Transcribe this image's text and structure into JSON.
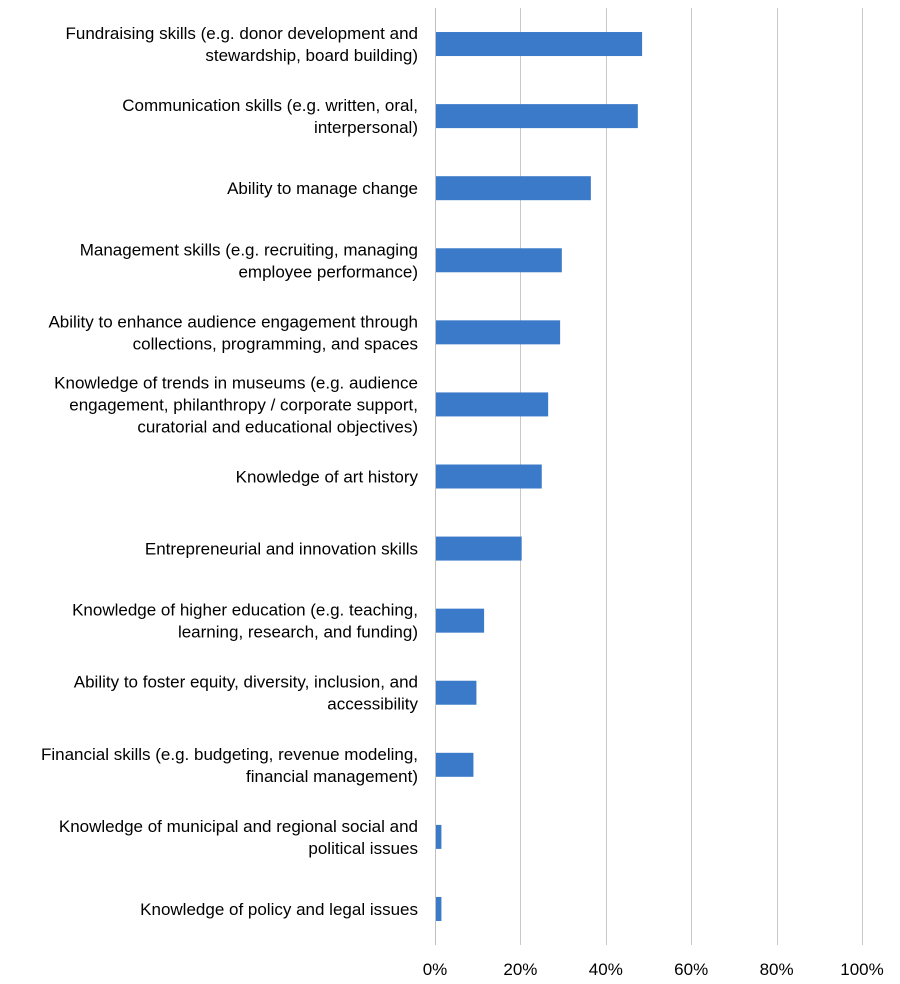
{
  "chart_data": {
    "type": "bar",
    "orientation": "horizontal",
    "title": "",
    "xlabel": "",
    "ylabel": "",
    "xlim": [
      0,
      1
    ],
    "grid": true,
    "legend": "none",
    "bar_color": "#3a7ac8",
    "grid_color": "#c8c8c8",
    "tick_labels": [
      "0%",
      "20%",
      "40%",
      "60%",
      "80%",
      "100%"
    ],
    "tick_values": [
      0,
      0.2,
      0.4,
      0.6,
      0.8,
      1.0
    ],
    "categories": [
      [
        "Fundraising skills (e.g. donor development and",
        "stewardship, board building)"
      ],
      [
        "Communication skills (e.g. written, oral,",
        "interpersonal)"
      ],
      [
        "Ability to manage change"
      ],
      [
        "Management skills (e.g. recruiting, managing",
        "employee performance)"
      ],
      [
        "Ability to enhance  audience engagement through",
        "collections, programming, and spaces"
      ],
      [
        "Knowledge of trends in museums (e.g. audience",
        "engagement, philanthropy / corporate support,",
        "curatorial and educational objectives)"
      ],
      [
        "Knowledge of art history"
      ],
      [
        "Entrepreneurial and innovation skills"
      ],
      [
        "Knowledge of higher education (e.g. teaching,",
        "learning, research, and funding)"
      ],
      [
        "Ability to foster equity, diversity, inclusion, and",
        "accessibility"
      ],
      [
        "Financial skills (e.g. budgeting, revenue modeling,",
        "financial management)"
      ],
      [
        "Knowledge of municipal and regional social and",
        "political issues"
      ],
      [
        "Knowledge of policy and legal issues"
      ]
    ],
    "values": [
      0.485,
      0.475,
      0.365,
      0.297,
      0.293,
      0.265,
      0.25,
      0.203,
      0.115,
      0.097,
      0.09,
      0.015,
      0.015
    ]
  }
}
